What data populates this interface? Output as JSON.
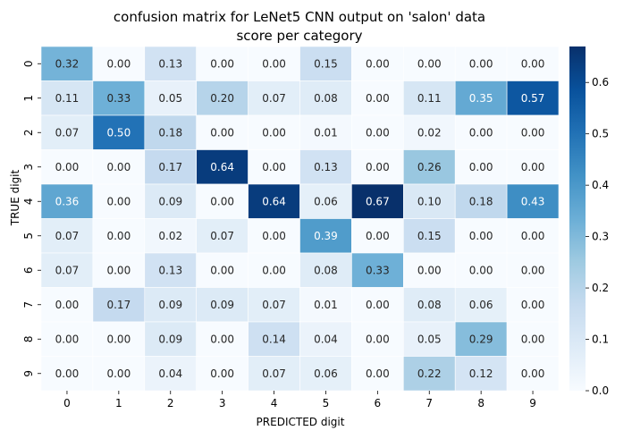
{
  "chart_data": {
    "type": "heatmap",
    "title": "confusion matrix for LeNet5 CNN output on 'salon' data",
    "subtitle": "score per category",
    "xlabel": "PREDICTED digit",
    "ylabel": "TRUE digit",
    "x_categories": [
      "0",
      "1",
      "2",
      "3",
      "4",
      "5",
      "6",
      "7",
      "8",
      "9"
    ],
    "y_categories": [
      "0",
      "1",
      "2",
      "3",
      "4",
      "5",
      "6",
      "7",
      "8",
      "9"
    ],
    "values": [
      [
        0.32,
        0.0,
        0.13,
        0.0,
        0.0,
        0.15,
        0.0,
        0.0,
        0.0,
        0.0
      ],
      [
        0.11,
        0.33,
        0.05,
        0.2,
        0.07,
        0.08,
        0.0,
        0.11,
        0.35,
        0.57
      ],
      [
        0.07,
        0.5,
        0.18,
        0.0,
        0.0,
        0.01,
        0.0,
        0.02,
        0.0,
        0.0
      ],
      [
        0.0,
        0.0,
        0.17,
        0.64,
        0.0,
        0.13,
        0.0,
        0.26,
        0.0,
        0.0
      ],
      [
        0.36,
        0.0,
        0.09,
        0.0,
        0.64,
        0.06,
        0.67,
        0.1,
        0.18,
        0.43
      ],
      [
        0.07,
        0.0,
        0.02,
        0.07,
        0.0,
        0.39,
        0.0,
        0.15,
        0.0,
        0.0
      ],
      [
        0.07,
        0.0,
        0.13,
        0.0,
        0.0,
        0.08,
        0.33,
        0.0,
        0.0,
        0.0
      ],
      [
        0.0,
        0.17,
        0.09,
        0.09,
        0.07,
        0.01,
        0.0,
        0.08,
        0.06,
        0.0
      ],
      [
        0.0,
        0.0,
        0.09,
        0.0,
        0.14,
        0.04,
        0.0,
        0.05,
        0.29,
        0.0
      ],
      [
        0.0,
        0.0,
        0.04,
        0.0,
        0.07,
        0.06,
        0.0,
        0.22,
        0.12,
        0.0
      ]
    ],
    "colorscale": "Blues",
    "vmin": 0.0,
    "vmax": 0.67,
    "colorbar_ticks": [
      "0.0",
      "0.1",
      "0.2",
      "0.3",
      "0.4",
      "0.5",
      "0.6"
    ],
    "grid": false,
    "cell_separator_color": "#ffffff"
  }
}
